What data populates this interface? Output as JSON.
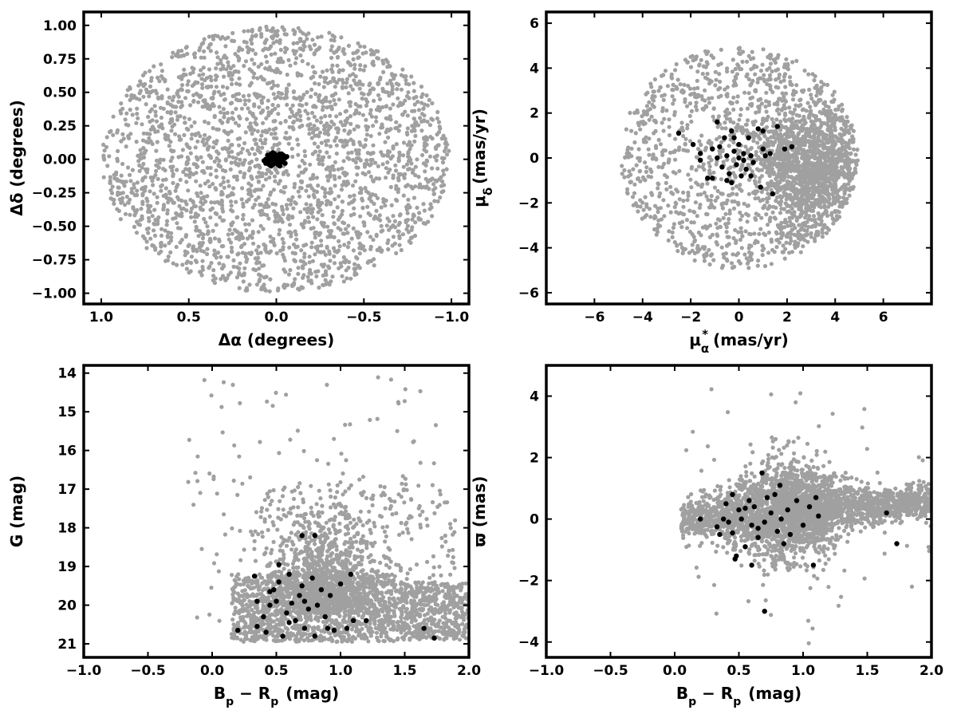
{
  "colors": {
    "field": "#a0a0a0",
    "members": "#000000",
    "frame": "#000000"
  },
  "chart_data": [
    {
      "type": "scatter",
      "panel": "sky-positions",
      "xlabel": "Δα (degrees)",
      "ylabel": "Δδ (degrees)",
      "xlim": [
        1.1,
        -1.1
      ],
      "ylim": [
        -1.08,
        1.1
      ],
      "x_reversed": true,
      "xticks": [
        1.0,
        0.5,
        0.0,
        -0.5,
        -1.0
      ],
      "xtick_labels": [
        "1.0",
        "0.5",
        "0.0",
        "−0.5",
        "−1.0"
      ],
      "yticks": [
        -1.0,
        -0.75,
        -0.5,
        -0.25,
        0.0,
        0.25,
        0.5,
        0.75,
        1.0
      ],
      "ytick_labels": [
        "−1.00",
        "−0.75",
        "−0.50",
        "−0.25",
        "0.00",
        "0.25",
        "0.50",
        "0.75",
        "1.00"
      ],
      "grid": false,
      "series": [
        {
          "role": "field-stars",
          "color": "#a0a0a0",
          "n_points_approx": 2500,
          "distribution": "uniform within a circle of radius 1.0 degree centred on (0, 0)",
          "center": [
            0,
            0
          ],
          "radius": 1.0
        },
        {
          "role": "member-stars",
          "color": "#000000",
          "points": [
            [
              0.02,
              0.03
            ],
            [
              -0.01,
              0.02
            ],
            [
              0.03,
              -0.01
            ],
            [
              -0.03,
              -0.02
            ],
            [
              0.0,
              0.0
            ],
            [
              0.04,
              0.01
            ],
            [
              -0.02,
              0.04
            ],
            [
              0.01,
              -0.03
            ],
            [
              0.05,
              -0.02
            ],
            [
              -0.04,
              0.0
            ],
            [
              0.02,
              0.05
            ],
            [
              -0.01,
              -0.04
            ],
            [
              0.03,
              0.02
            ],
            [
              0.06,
              0.0
            ],
            [
              -0.05,
              -0.03
            ],
            [
              0.0,
              0.03
            ],
            [
              0.04,
              -0.04
            ],
            [
              -0.03,
              0.01
            ],
            [
              0.01,
              0.01
            ],
            [
              0.02,
              -0.02
            ],
            [
              -0.02,
              -0.01
            ],
            [
              0.05,
              0.03
            ],
            [
              -0.06,
              0.02
            ],
            [
              0.03,
              -0.05
            ],
            [
              0.0,
              -0.02
            ],
            [
              -0.04,
              0.03
            ],
            [
              0.07,
              -0.01
            ],
            [
              0.01,
              0.04
            ],
            [
              -0.01,
              -0.01
            ],
            [
              0.02,
              0.0
            ],
            [
              0.04,
              0.03
            ],
            [
              -0.02,
              -0.05
            ],
            [
              0.06,
              -0.03
            ],
            [
              -0.03,
              0.04
            ],
            [
              0.01,
              -0.01
            ],
            [
              -0.05,
              0.01
            ],
            [
              0.03,
              0.04
            ],
            [
              0.0,
              0.01
            ],
            [
              0.02,
              -0.04
            ],
            [
              -0.01,
              0.0
            ]
          ]
        }
      ]
    },
    {
      "type": "scatter",
      "panel": "proper-motions",
      "xlabel": "μ*α  (mas/yr)",
      "ylabel": "μδ (mas/yr)",
      "xlim": [
        -8,
        8
      ],
      "ylim": [
        -6.5,
        6.5
      ],
      "xticks": [
        -6,
        -4,
        -2,
        0,
        2,
        4,
        6
      ],
      "xtick_labels": [
        "−6",
        "−4",
        "−2",
        "0",
        "2",
        "4",
        "6"
      ],
      "yticks": [
        -6,
        -4,
        -2,
        0,
        2,
        4,
        6
      ],
      "ytick_labels": [
        "−6",
        "−4",
        "−2",
        "0",
        "2",
        "4",
        "6"
      ],
      "grid": false,
      "series": [
        {
          "role": "field-stars",
          "color": "#a0a0a0",
          "n_points_approx": 2500,
          "distribution": "filled within a circle of radius 5 mas/yr centred on (0, 0), densest around (3, −0.5)",
          "center": [
            0,
            0
          ],
          "radius": 5.0,
          "dense_center": [
            3.0,
            -0.5
          ]
        },
        {
          "role": "member-stars",
          "color": "#000000",
          "points": [
            [
              -2.5,
              1.1
            ],
            [
              -1.9,
              0.6
            ],
            [
              -1.6,
              0.2
            ],
            [
              -1.3,
              -0.9
            ],
            [
              -1.1,
              0.4
            ],
            [
              -0.9,
              1.6
            ],
            [
              -0.8,
              0.5
            ],
            [
              -0.7,
              -0.4
            ],
            [
              -0.6,
              0.9
            ],
            [
              -0.5,
              0.1
            ],
            [
              -0.4,
              -0.7
            ],
            [
              -0.3,
              1.2
            ],
            [
              -0.3,
              -1.1
            ],
            [
              -0.2,
              0.3
            ],
            [
              -0.1,
              -0.3
            ],
            [
              0.0,
              0.0
            ],
            [
              0.0,
              0.6
            ],
            [
              0.1,
              -0.8
            ],
            [
              0.2,
              0.2
            ],
            [
              0.3,
              -0.5
            ],
            [
              0.4,
              0.9
            ],
            [
              0.5,
              0.1
            ],
            [
              0.6,
              -0.2
            ],
            [
              0.8,
              1.3
            ],
            [
              0.9,
              -1.3
            ],
            [
              1.0,
              0.4
            ],
            [
              1.1,
              0.1
            ],
            [
              1.3,
              0.2
            ],
            [
              1.4,
              -1.6
            ],
            [
              1.6,
              1.4
            ],
            [
              1.9,
              0.4
            ],
            [
              2.2,
              0.5
            ],
            [
              -1.1,
              -0.9
            ],
            [
              -0.5,
              -1.0
            ],
            [
              -1.6,
              -0.1
            ],
            [
              -0.9,
              0.0
            ],
            [
              0.2,
              -0.1
            ],
            [
              -0.2,
              0.9
            ],
            [
              1.0,
              1.2
            ],
            [
              0.5,
              -0.8
            ]
          ]
        }
      ]
    },
    {
      "type": "scatter",
      "panel": "cmd",
      "xlabel": "Bp − Rp (mag)",
      "ylabel": "G (mag)",
      "xlim": [
        -1.0,
        2.0
      ],
      "ylim": [
        21.35,
        13.8
      ],
      "y_reversed": true,
      "xticks": [
        -1.0,
        -0.5,
        0.0,
        0.5,
        1.0,
        1.5,
        2.0
      ],
      "xtick_labels": [
        "−1.0",
        "−0.5",
        "0.0",
        "0.5",
        "1.0",
        "1.5",
        "2.0"
      ],
      "yticks": [
        14,
        15,
        16,
        17,
        18,
        19,
        20,
        21
      ],
      "ytick_labels": [
        "14",
        "15",
        "16",
        "17",
        "18",
        "19",
        "20",
        "21"
      ],
      "grid": false,
      "series": [
        {
          "role": "field-stars",
          "color": "#a0a0a0",
          "n_points_approx": 3000,
          "distribution": "faint band G 19.5–21 spanning Bp−Rp 0.1–2.0, plus a plume extending to G≈16.5 around Bp−Rp 0.6–1.3 and sparse bright stars down to G≈14"
        },
        {
          "role": "member-stars",
          "color": "#000000",
          "points": [
            [
              0.2,
              20.65
            ],
            [
              0.35,
              20.55
            ],
            [
              0.4,
              20.3
            ],
            [
              0.42,
              20.7
            ],
            [
              0.45,
              20.0
            ],
            [
              0.48,
              19.6
            ],
            [
              0.5,
              19.9
            ],
            [
              0.52,
              19.4
            ],
            [
              0.55,
              20.8
            ],
            [
              0.58,
              20.2
            ],
            [
              0.6,
              19.2
            ],
            [
              0.62,
              19.95
            ],
            [
              0.65,
              20.4
            ],
            [
              0.68,
              19.75
            ],
            [
              0.7,
              19.5
            ],
            [
              0.72,
              20.6
            ],
            [
              0.75,
              20.1
            ],
            [
              0.78,
              19.3
            ],
            [
              0.8,
              20.8
            ],
            [
              0.82,
              20.0
            ],
            [
              0.85,
              19.6
            ],
            [
              0.88,
              20.3
            ],
            [
              0.9,
              20.6
            ],
            [
              0.92,
              19.75
            ],
            [
              0.95,
              20.65
            ],
            [
              1.0,
              19.45
            ],
            [
              1.05,
              20.6
            ],
            [
              1.08,
              19.2
            ],
            [
              1.1,
              20.4
            ],
            [
              0.7,
              18.2
            ],
            [
              0.8,
              18.2
            ],
            [
              0.35,
              19.9
            ],
            [
              0.33,
              19.25
            ],
            [
              0.45,
              19.65
            ],
            [
              0.52,
              18.95
            ],
            [
              0.6,
              20.45
            ],
            [
              0.72,
              19.9
            ],
            [
              1.2,
              20.4
            ],
            [
              1.65,
              20.6
            ],
            [
              1.73,
              20.85
            ]
          ]
        }
      ]
    },
    {
      "type": "scatter",
      "panel": "parallax",
      "xlabel": "Bp − Rp (mag)",
      "ylabel": "ϖ (mas)",
      "xlim": [
        -1.0,
        2.0
      ],
      "ylim": [
        -4.5,
        5.0
      ],
      "xticks": [
        -1.0,
        -0.5,
        0.0,
        0.5,
        1.0,
        1.5,
        2.0
      ],
      "xtick_labels": [
        "−1.0",
        "−0.5",
        "0.0",
        "0.5",
        "1.0",
        "1.5",
        "2.0"
      ],
      "yticks": [
        -4,
        -2,
        0,
        2,
        4
      ],
      "ytick_labels": [
        "−4",
        "−2",
        "0",
        "2",
        "4"
      ],
      "grid": false,
      "series": [
        {
          "role": "field-stars",
          "color": "#a0a0a0",
          "n_points_approx": 3000,
          "distribution": "horizontal band around ϖ≈0 to 0.5 over Bp−Rp 0.1–2.0, spread widest near Bp−Rp 0.5–1.0"
        },
        {
          "role": "member-stars",
          "color": "#000000",
          "points": [
            [
              0.2,
              0.0
            ],
            [
              0.33,
              -0.25
            ],
            [
              0.35,
              -0.5
            ],
            [
              0.38,
              0.0
            ],
            [
              0.4,
              0.5
            ],
            [
              0.42,
              -0.1
            ],
            [
              0.45,
              0.8
            ],
            [
              0.47,
              -1.3
            ],
            [
              0.5,
              0.3
            ],
            [
              0.52,
              0.0
            ],
            [
              0.55,
              -0.9
            ],
            [
              0.58,
              0.6
            ],
            [
              0.6,
              -0.2
            ],
            [
              0.62,
              0.4
            ],
            [
              0.65,
              -0.6
            ],
            [
              0.68,
              1.5
            ],
            [
              0.7,
              -0.1
            ],
            [
              0.72,
              0.7
            ],
            [
              0.75,
              0.2
            ],
            [
              0.78,
              0.8
            ],
            [
              0.8,
              -0.4
            ],
            [
              0.82,
              1.1
            ],
            [
              0.85,
              -0.8
            ],
            [
              0.88,
              0.3
            ],
            [
              0.9,
              -0.5
            ],
            [
              0.95,
              0.6
            ],
            [
              1.0,
              -0.2
            ],
            [
              1.05,
              0.4
            ],
            [
              1.08,
              -1.5
            ],
            [
              1.12,
              0.1
            ],
            [
              0.7,
              -3.0
            ],
            [
              0.55,
              0.35
            ],
            [
              0.6,
              -1.5
            ],
            [
              0.45,
              -0.45
            ],
            [
              0.48,
              -1.2
            ],
            [
              0.65,
              -0.3
            ],
            [
              0.83,
              0.0
            ],
            [
              1.1,
              0.7
            ],
            [
              1.65,
              0.2
            ],
            [
              1.73,
              -0.8
            ]
          ]
        }
      ]
    }
  ]
}
